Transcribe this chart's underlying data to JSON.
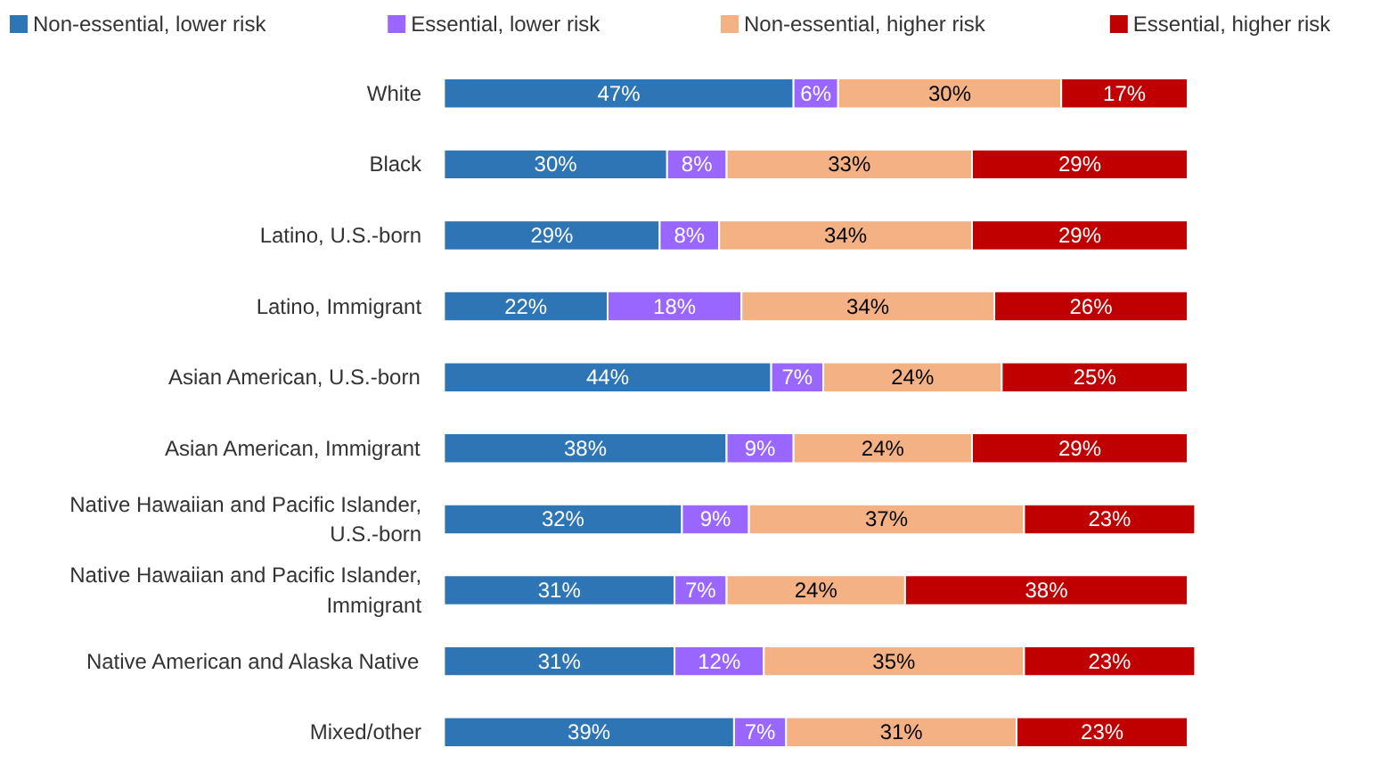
{
  "chart_data": {
    "type": "bar",
    "orientation": "horizontal",
    "stacked": true,
    "legend": "top",
    "grid": false,
    "tick_labels": "y",
    "categories": [
      "White",
      "Black",
      "Latino, U.S.-born",
      "Latino, Immigrant",
      "Asian American, U.S.-born",
      "Asian American, Immigrant",
      "Native Hawaiian and Pacific Islander, U.S.-born",
      "Native Hawaiian and Pacific Islander, Immigrant",
      "Native American and Alaska Native",
      "Mixed/other"
    ],
    "series": [
      {
        "name": "Non-essential, lower risk",
        "color": "#2e75b6",
        "values": [
          47,
          30,
          29,
          22,
          44,
          38,
          32,
          31,
          31,
          39
        ],
        "value_labels": [
          "47%",
          "30%",
          "29%",
          "22%",
          "44%",
          "38%",
          "32%",
          "31%",
          "31%",
          "39%"
        ]
      },
      {
        "name": "Essential, lower risk",
        "color": "#9966ff",
        "values": [
          6,
          8,
          8,
          18,
          7,
          9,
          9,
          7,
          12,
          7
        ],
        "value_labels": [
          "6%",
          "8%",
          "8%",
          "18%",
          "7%",
          "9%",
          "9%",
          "7%",
          "12%",
          "7%"
        ]
      },
      {
        "name": "Non-essential, higher risk",
        "color": "#f4b183",
        "values": [
          30,
          33,
          34,
          34,
          24,
          24,
          37,
          24,
          35,
          31
        ],
        "value_labels": [
          "30%",
          "33%",
          "34%",
          "34%",
          "24%",
          "24%",
          "37%",
          "24%",
          "35%",
          "31%"
        ]
      },
      {
        "name": "Essential, higher risk",
        "color": "#c00000",
        "values": [
          17,
          29,
          29,
          26,
          25,
          29,
          23,
          38,
          23,
          23
        ],
        "value_labels": [
          "17%",
          "29%",
          "29%",
          "26%",
          "25%",
          "29%",
          "23%",
          "38%",
          "23%",
          "23%"
        ]
      }
    ]
  }
}
